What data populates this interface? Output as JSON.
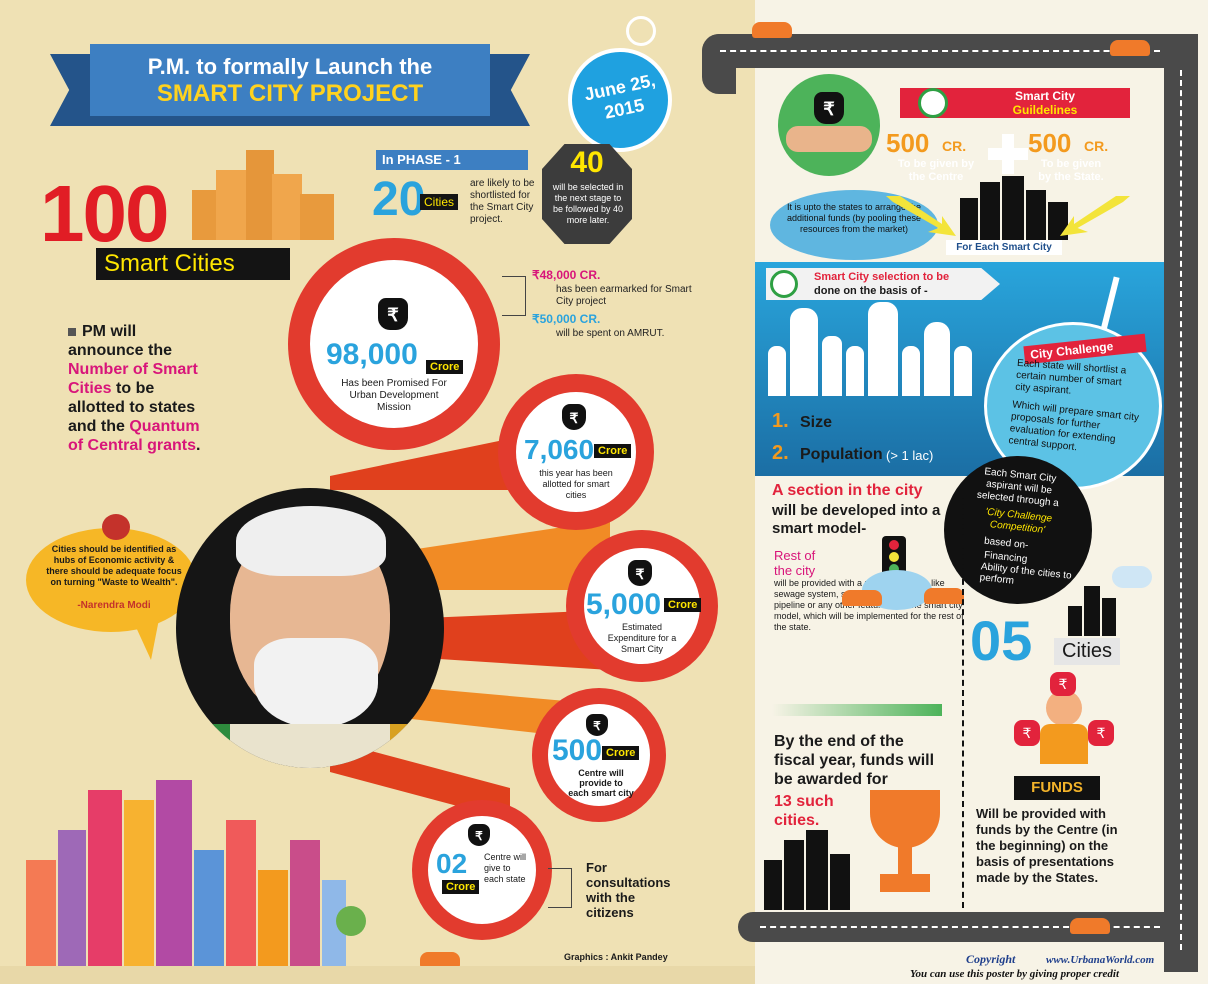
{
  "header": {
    "title_line1": "P.M. to formally Launch the",
    "title_line2": "SMART CITY PROJECT",
    "date": "June 25, 2015"
  },
  "hero": {
    "count": "100",
    "label": "Smart Cities"
  },
  "phase": {
    "label": "In PHASE - 1",
    "count": "20",
    "count_unit": "Cities",
    "count_text": "are likely to be shortlisted for the Smart City project.",
    "next_count": "40",
    "next_text": "will be selected in the next stage to be followed by 40 more later."
  },
  "funding_notes": [
    {
      "amount": "₹48,000 CR.",
      "text": "has been earmarked for Smart City project"
    },
    {
      "amount": "₹50,000 CR.",
      "text": "will be spent on AMRUT."
    }
  ],
  "pm_announce": {
    "part1": "PM will announce the",
    "highlight1": "Number of Smart Cities",
    "part2": "to be allotted to states and the",
    "highlight2": "Quantum of Central grants",
    "part3": "."
  },
  "quote": {
    "text": "Cities should be identified as hubs of Economic activity & there should be adequate focus on turning \"Waste to Wealth\".",
    "author": "-Narendra Modi"
  },
  "gears": [
    {
      "num": "98,000",
      "tag": "Crore",
      "text": "Has been Promised For Urban Development Mission"
    },
    {
      "num": "7,060",
      "tag": "Crore",
      "text": "this year has been allotted for smart cities"
    },
    {
      "num": "5,000",
      "tag": "Crore",
      "text": "Estimated Expenditure for a Smart City"
    },
    {
      "num": "500",
      "tag": "Crore",
      "text": "Centre will provide to each smart city"
    },
    {
      "num": "02",
      "tag": "Crore",
      "text": "Centre will give to each state"
    }
  ],
  "consult": "For consultations with the citizens",
  "credit_graphics": "Graphics : Ankit Pandey",
  "guidelines": {
    "title_line1": "Smart City",
    "title_line2": "Guildelines",
    "centre_amount": "500",
    "centre_unit": "CR.",
    "centre_text": "To be given by the Centre",
    "state_amount": "500",
    "state_unit": "CR.",
    "state_text": "To be given by the State.",
    "note": "It is upto the states to arrange the additional funds (by pooling these resources from the market)",
    "each_city": "For Each Smart City"
  },
  "selection": {
    "title_line1": "Smart City selection to be",
    "title_line2": "done on the basis of -",
    "item1_num": "1.",
    "item1_label": "Size",
    "item2_num": "2.",
    "item2_label": "Population",
    "item2_note": "(> 1 lac)"
  },
  "challenge": {
    "title": "City Challenge",
    "point1": "Each state will shortlist a certain number of smart city aspirant.",
    "point2": "Which will prepare smart city proposals for further evaluation for extending central support."
  },
  "competition": {
    "text": "Each Smart City aspirant will be selected through a",
    "highlight": "'City Challenge Competition'",
    "based": "based on-",
    "bullet1": "Financing",
    "bullet2": "Ability of the cities to perform"
  },
  "section": {
    "headline": "A section in the city",
    "subhead": "will be developed into a smart model-",
    "rest_label": "Rest of the city",
    "rest_text": "will be provided with a pan city feature. like sewage system, smart traffic solution, water pipeline or any other feature from the smart city model, which will be implemented for the rest of the state."
  },
  "five_cities": {
    "count": "05",
    "unit": "Cities",
    "funds_label": "FUNDS",
    "text": "Will be provided with funds by the Centre (in the beginning) on the basis of presentations made by the States."
  },
  "fiscal": {
    "text": "By the end of the fiscal year, funds will be awarded for",
    "highlight": "13 such cities."
  },
  "footer": {
    "copyright": "Copyright",
    "site": "www.UrbanaWorld.com",
    "notice": "You can use this poster by giving proper credit"
  },
  "colors": {
    "red": "#e23b2e",
    "blue": "#2aa3dd",
    "orange": "#f39a1e",
    "magenta": "#d8157a",
    "navy": "#2f5d8d"
  }
}
